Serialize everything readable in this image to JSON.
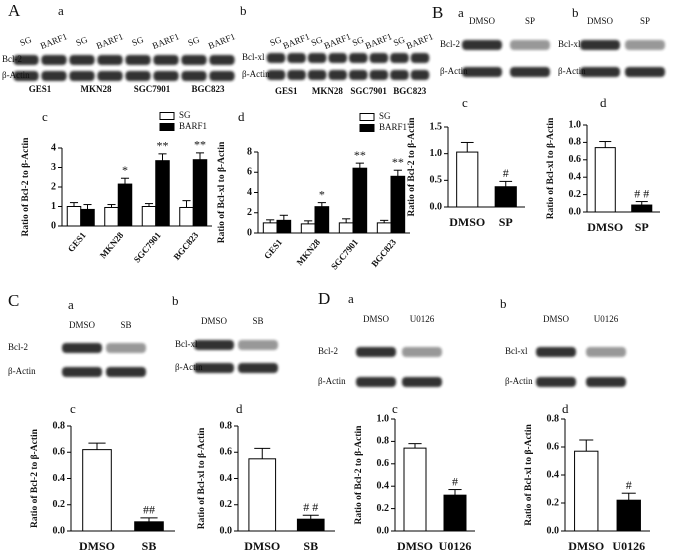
{
  "blots": [
    {
      "panel": "A",
      "sub": "a",
      "lanes": [
        "SG",
        "BARF1",
        "SG",
        "BARF1",
        "SG",
        "BARF1",
        "SG",
        "BARF1"
      ],
      "groups": [
        "GES1",
        "MKN28",
        "SGC7901",
        "BGC823"
      ],
      "rows": [
        "Bcl-2",
        "β-Actin"
      ]
    },
    {
      "sub": "b",
      "lanes": [
        "SG",
        "BARF1",
        "SG",
        "BARF1",
        "SG",
        "BARF1",
        "SG",
        "BARF1"
      ],
      "groups": [
        "GES1",
        "MKN28",
        "SGC7901",
        "BGC823"
      ],
      "rows": [
        "Bcl-xl",
        "β-Actin"
      ]
    },
    {
      "panel": "B",
      "sub": "a",
      "lanes": [
        "DMSO",
        "SP"
      ],
      "rows": [
        "Bcl-2",
        "β-Actin"
      ]
    },
    {
      "sub": "b",
      "lanes": [
        "DMSO",
        "SP"
      ],
      "rows": [
        "Bcl-xl",
        "β-Actin"
      ]
    },
    {
      "panel": "C",
      "sub": "a",
      "lanes": [
        "DMSO",
        "SB"
      ],
      "rows": [
        "Bcl-2",
        "β-Actin"
      ]
    },
    {
      "sub": "b",
      "lanes": [
        "DMSO",
        "SB"
      ],
      "rows": [
        "Bcl-xl",
        "β-Actin"
      ]
    },
    {
      "panel": "D",
      "sub": "a",
      "lanes": [
        "DMSO",
        "U0126"
      ],
      "rows": [
        "Bcl-2",
        "β-Actin"
      ]
    },
    {
      "sub": "b",
      "lanes": [
        "DMSO",
        "U0126"
      ],
      "rows": [
        "Bcl-xl",
        "β-Actin"
      ]
    }
  ],
  "chart_data": [
    {
      "type": "bar",
      "panel": "c",
      "y_label": "Ratio of Bcl-2 to β-Actin",
      "categories": [
        "GES1",
        "MKN28",
        "SGC7901",
        "BGC823"
      ],
      "series": [
        {
          "name": "SG",
          "color": "#ffffff",
          "values": [
            1.0,
            0.95,
            1.0,
            0.95
          ],
          "errors": [
            0.2,
            0.15,
            0.15,
            0.35
          ]
        },
        {
          "name": "BARF1",
          "color": "#000000",
          "values": [
            0.85,
            2.15,
            3.35,
            3.4
          ],
          "errors": [
            0.25,
            0.3,
            0.35,
            0.35
          ],
          "annotations": [
            null,
            "*",
            "**",
            "**"
          ]
        }
      ],
      "ylim": [
        0,
        4
      ],
      "yticks": [
        0,
        1,
        2,
        3,
        4
      ]
    },
    {
      "type": "bar",
      "panel": "d",
      "y_label": "Ratio of Bcl-xl to β-Actin",
      "categories": [
        "GES1",
        "MKN28",
        "SGC7901",
        "BGC823"
      ],
      "series": [
        {
          "name": "SG",
          "color": "#ffffff",
          "values": [
            1.0,
            0.9,
            1.0,
            1.0
          ],
          "errors": [
            0.3,
            0.3,
            0.4,
            0.25
          ]
        },
        {
          "name": "BARF1",
          "color": "#000000",
          "values": [
            1.25,
            2.6,
            6.4,
            5.6
          ],
          "errors": [
            0.5,
            0.4,
            0.5,
            0.6
          ],
          "annotations": [
            null,
            "*",
            "**",
            "**"
          ]
        }
      ],
      "ylim": [
        0,
        8
      ],
      "yticks": [
        0,
        2,
        4,
        6,
        8
      ]
    },
    {
      "type": "bar",
      "panel": "c",
      "y_label": "Ratio of Bcl-2 to β-Actin",
      "categories": [
        "DMSO",
        "SP"
      ],
      "values": [
        1.03,
        0.38
      ],
      "errors": [
        0.18,
        0.1
      ],
      "colors": [
        "#ffffff",
        "#000000"
      ],
      "annotations": [
        null,
        "#"
      ],
      "ylim": [
        0,
        1.5
      ],
      "yticks": [
        {
          "value": 0,
          "label": "0.0"
        },
        0.5,
        {
          "value": 1,
          "label": "1.0"
        },
        1.5
      ]
    },
    {
      "type": "bar",
      "panel": "d",
      "y_label": "Ratio of Bcl-xl to β-Actin",
      "categories": [
        "DMSO",
        "SP"
      ],
      "values": [
        0.74,
        0.08
      ],
      "errors": [
        0.07,
        0.04
      ],
      "colors": [
        "#ffffff",
        "#000000"
      ],
      "annotations": [
        null,
        "# #"
      ],
      "ylim": [
        0,
        1
      ],
      "yticks": [
        {
          "value": 0,
          "label": "0.0"
        },
        0.2,
        0.4,
        0.6,
        0.8,
        {
          "value": 1,
          "label": "1.0"
        }
      ]
    },
    {
      "type": "bar",
      "panel": "c",
      "y_label": "Ratio of Bcl-2 to β-Actin",
      "categories": [
        "DMSO",
        "SB"
      ],
      "values": [
        0.62,
        0.07
      ],
      "errors": [
        0.05,
        0.03
      ],
      "colors": [
        "#ffffff",
        "#000000"
      ],
      "annotations": [
        null,
        "##"
      ],
      "ylim": [
        0,
        0.8
      ],
      "yticks": [
        {
          "value": 0,
          "label": "0.0"
        },
        0.2,
        0.4,
        0.6,
        0.8
      ]
    },
    {
      "type": "bar",
      "panel": "d",
      "y_label": "Ratio of Bcl-xl to β-Actin",
      "categories": [
        "DMSO",
        "SB"
      ],
      "values": [
        0.55,
        0.09
      ],
      "errors": [
        0.08,
        0.03
      ],
      "colors": [
        "#ffffff",
        "#000000"
      ],
      "annotations": [
        null,
        "# #"
      ],
      "ylim": [
        0,
        0.8
      ],
      "yticks": [
        {
          "value": 0,
          "label": "0.0"
        },
        0.2,
        0.4,
        0.6,
        0.8
      ]
    },
    {
      "type": "bar",
      "panel": "c",
      "y_label": "Ratio of Bcl-2 to β-Actin",
      "categories": [
        "DMSO",
        "U0126"
      ],
      "values": [
        0.74,
        0.32
      ],
      "errors": [
        0.04,
        0.05
      ],
      "colors": [
        "#ffffff",
        "#000000"
      ],
      "annotations": [
        null,
        "#"
      ],
      "ylim": [
        0,
        1
      ],
      "yticks": [
        {
          "value": 0,
          "label": "0.0"
        },
        0.2,
        0.4,
        0.6,
        0.8,
        {
          "value": 1,
          "label": "1.0"
        }
      ]
    },
    {
      "type": "bar",
      "panel": "d",
      "y_label": "Ratio of Bcl-xl to β-Actin",
      "categories": [
        "DMSO",
        "U0126"
      ],
      "values": [
        0.57,
        0.22
      ],
      "errors": [
        0.08,
        0.05
      ],
      "colors": [
        "#ffffff",
        "#000000"
      ],
      "annotations": [
        null,
        "#"
      ],
      "ylim": [
        0,
        0.8
      ],
      "yticks": [
        {
          "value": 0,
          "label": "0.0"
        },
        0.2,
        0.4,
        0.6,
        0.8
      ]
    }
  ]
}
